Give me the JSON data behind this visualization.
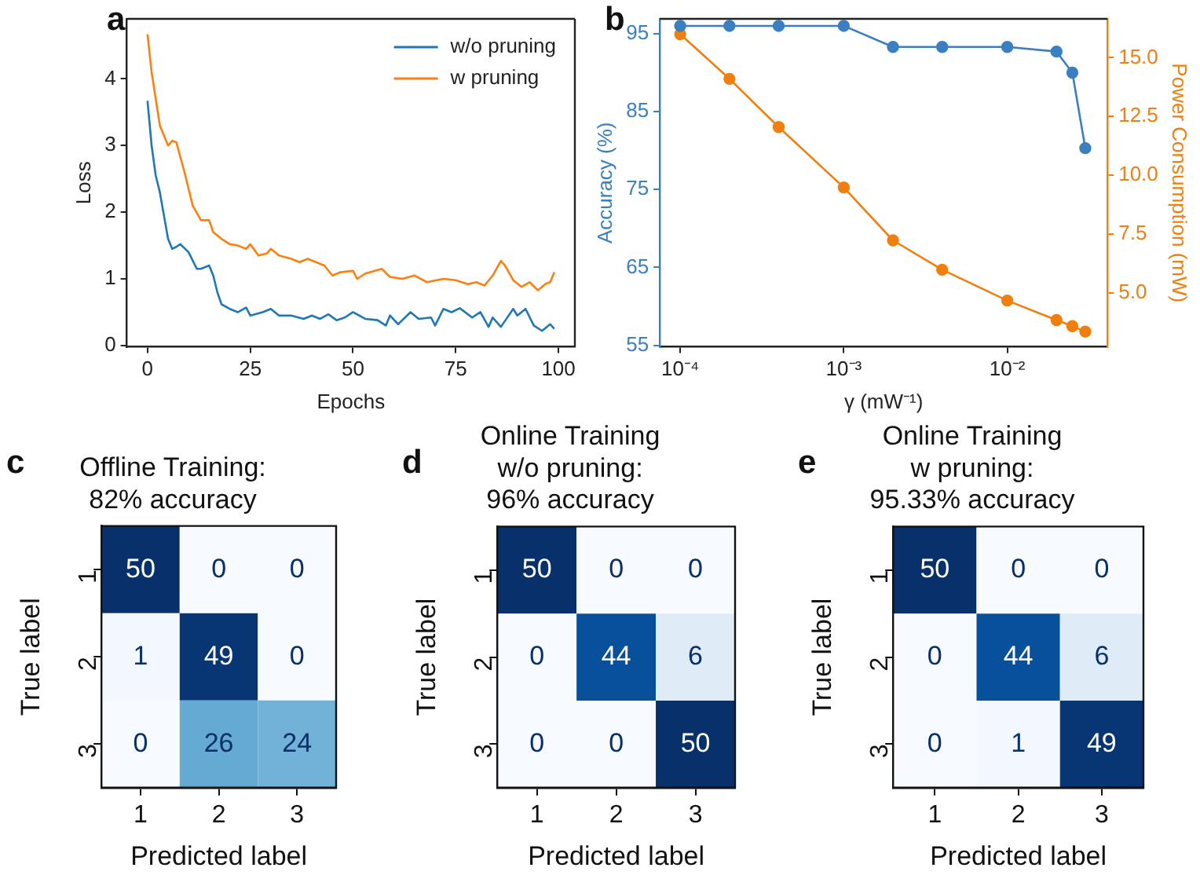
{
  "chart_data": [
    {
      "type": "line",
      "xlabel": "Epochs",
      "ylabel": "Loss",
      "annotations": [
        "a"
      ],
      "xlim": [
        -5,
        104
      ],
      "xticks": [
        0,
        25,
        50,
        75,
        100
      ],
      "ylim": [
        -0.02,
        4.9
      ],
      "yticks": [
        0,
        1,
        2,
        3,
        4
      ],
      "legend": "top right",
      "series": [
        {
          "name": "w/o pruning",
          "color": "#1f77b4",
          "x": [
            0,
            1,
            2,
            3,
            4,
            5,
            6,
            7,
            8,
            10,
            12,
            13,
            15,
            16,
            17,
            18,
            20,
            22,
            24,
            25,
            28,
            30,
            32,
            35,
            38,
            40,
            42,
            44,
            46,
            48,
            50,
            53,
            56,
            58,
            59,
            61,
            64,
            66,
            69,
            70,
            72,
            74,
            76,
            79,
            81,
            83,
            84,
            86,
            89,
            90,
            92,
            94,
            96,
            98,
            99
          ],
          "values": [
            3.67,
            3.0,
            2.55,
            2.3,
            1.95,
            1.6,
            1.45,
            1.48,
            1.52,
            1.4,
            1.15,
            1.15,
            1.2,
            1.05,
            0.8,
            0.62,
            0.55,
            0.5,
            0.57,
            0.45,
            0.5,
            0.55,
            0.45,
            0.45,
            0.4,
            0.45,
            0.4,
            0.47,
            0.38,
            0.42,
            0.5,
            0.4,
            0.38,
            0.3,
            0.45,
            0.32,
            0.5,
            0.4,
            0.42,
            0.3,
            0.55,
            0.5,
            0.56,
            0.42,
            0.5,
            0.28,
            0.42,
            0.28,
            0.55,
            0.45,
            0.55,
            0.3,
            0.22,
            0.32,
            0.25
          ]
        },
        {
          "name": "w pruning",
          "color": "#ff7f0e",
          "x": [
            0,
            1,
            2,
            3,
            5,
            6,
            7,
            9,
            11,
            13,
            15,
            16,
            18,
            20,
            22,
            24,
            25,
            27,
            29,
            30,
            32,
            35,
            37,
            39,
            41,
            43,
            45,
            47,
            50,
            51,
            53,
            57,
            59,
            62,
            65,
            68,
            72,
            75,
            78,
            80,
            82,
            84,
            86,
            87,
            89,
            91,
            93,
            95,
            97,
            98,
            99
          ],
          "values": [
            4.67,
            4.1,
            3.7,
            3.3,
            3.0,
            3.07,
            3.05,
            2.6,
            2.1,
            1.88,
            1.88,
            1.7,
            1.6,
            1.52,
            1.5,
            1.45,
            1.52,
            1.35,
            1.38,
            1.45,
            1.35,
            1.3,
            1.25,
            1.3,
            1.25,
            1.2,
            1.05,
            1.1,
            1.12,
            1.0,
            1.08,
            1.15,
            1.03,
            1.0,
            1.05,
            0.95,
            1.0,
            0.98,
            0.92,
            0.95,
            0.9,
            1.05,
            1.27,
            1.2,
            0.98,
            0.88,
            0.95,
            0.83,
            0.93,
            0.95,
            1.1
          ]
        }
      ]
    },
    {
      "type": "line",
      "xlabel": "γ (mW⁻¹)",
      "ylabel": "Accuracy (%)",
      "y2label": "Power Consumption (mW)",
      "annotations": [
        "b"
      ],
      "log": "x",
      "marker": "circle",
      "x": [
        0.0001,
        0.0002,
        0.0004,
        0.001,
        0.002,
        0.004,
        0.01,
        0.02,
        0.025,
        0.03
      ],
      "xlim": [
        7.5e-05,
        0.041
      ],
      "xticks": [
        {
          "value": 0.0001,
          "label": "10⁻⁴"
        },
        {
          "value": 0.001,
          "label": "10⁻³"
        },
        {
          "value": 0.01,
          "label": "10⁻²"
        }
      ],
      "ylim": [
        54.8,
        96.9
      ],
      "yticks": [
        55,
        65,
        75,
        85,
        95
      ],
      "y2lim": [
        2.7,
        16.65
      ],
      "y2ticks": [
        {
          "value": 5,
          "label": "5.0"
        },
        {
          "value": 7.5,
          "label": "7.5"
        },
        {
          "value": 10,
          "label": "10.0"
        },
        {
          "value": 12.5,
          "label": "12.5"
        },
        {
          "value": 15,
          "label": "15.0"
        }
      ],
      "series": [
        {
          "color": "#3a7fc1",
          "values": [
            96,
            96,
            96,
            96,
            93.3,
            93.3,
            93.3,
            92.7,
            90,
            80.3
          ]
        },
        {
          "color": "#f07f0f",
          "axis": "y2",
          "values": [
            16.0,
            14.1,
            12.05,
            9.48,
            7.23,
            5.98,
            4.67,
            3.84,
            3.58,
            3.35
          ]
        }
      ]
    },
    {
      "type": "heatmap",
      "title": "Offline Training:\n82% accuracy",
      "xlabel": "Predicted label",
      "ylabel": "True label",
      "annotations": [
        "c"
      ],
      "categories": [
        "1",
        "2",
        "3"
      ],
      "y_categories": [
        "1",
        "2",
        "3"
      ],
      "data_labels": true,
      "cells": [
        [
          50,
          0,
          0
        ],
        [
          1,
          49,
          0
        ],
        [
          0,
          26,
          24
        ]
      ]
    },
    {
      "type": "heatmap",
      "title": "Online Training\nw/o pruning:\n96% accuracy",
      "xlabel": "Predicted label",
      "ylabel": "True label",
      "annotations": [
        "d"
      ],
      "categories": [
        "1",
        "2",
        "3"
      ],
      "y_categories": [
        "1",
        "2",
        "3"
      ],
      "data_labels": true,
      "cells": [
        [
          50,
          0,
          0
        ],
        [
          0,
          44,
          6
        ],
        [
          0,
          0,
          50
        ]
      ]
    },
    {
      "type": "heatmap",
      "title": "Online Training\nw pruning:\n95.33% accuracy",
      "xlabel": "Predicted label",
      "ylabel": "True label",
      "annotations": [
        "e"
      ],
      "categories": [
        "1",
        "2",
        "3"
      ],
      "y_categories": [
        "1",
        "2",
        "3"
      ],
      "data_labels": true,
      "cells": [
        [
          50,
          0,
          0
        ],
        [
          0,
          44,
          6
        ],
        [
          0,
          1,
          49
        ]
      ]
    }
  ]
}
